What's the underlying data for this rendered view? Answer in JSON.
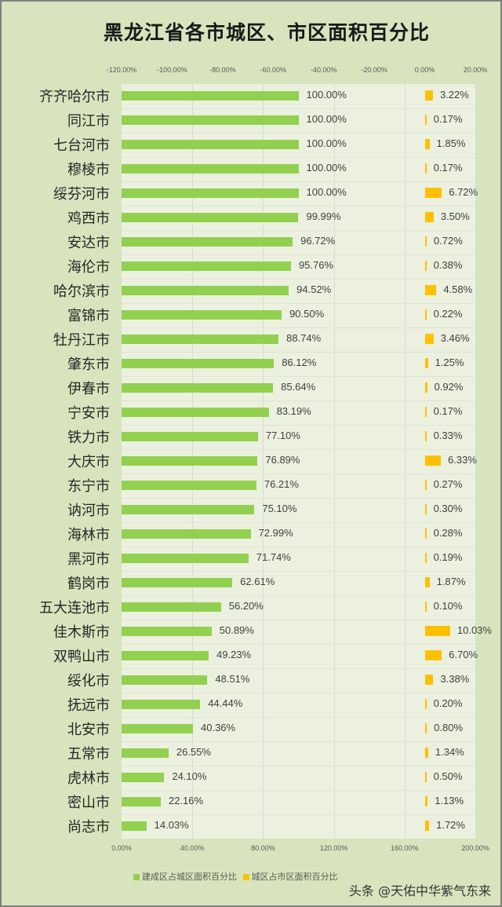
{
  "chart_data": {
    "type": "bar",
    "orientation": "horizontal",
    "title": "黑龙江省各市城区、市区面积百分比",
    "categories": [
      "齐齐哈尔市",
      "同江市",
      "七台河市",
      "穆棱市",
      "绥芬河市",
      "鸡西市",
      "安达市",
      "海伦市",
      "哈尔滨市",
      "富锦市",
      "牡丹江市",
      "肇东市",
      "伊春市",
      "宁安市",
      "铁力市",
      "大庆市",
      "东宁市",
      "讷河市",
      "海林市",
      "黑河市",
      "鹤岗市",
      "五大连池市",
      "佳木斯市",
      "双鸭山市",
      "绥化市",
      "抚远市",
      "北安市",
      "五常市",
      "虎林市",
      "密山市",
      "尚志市"
    ],
    "series": [
      {
        "name": "建成区占城区面积百分比",
        "color": "#92d050",
        "axis": "bottom",
        "values": [
          100.0,
          100.0,
          100.0,
          100.0,
          100.0,
          99.99,
          96.72,
          95.76,
          94.52,
          90.5,
          88.74,
          86.12,
          85.64,
          83.19,
          77.1,
          76.89,
          76.21,
          75.1,
          72.99,
          71.74,
          62.61,
          56.2,
          50.89,
          49.23,
          48.51,
          44.44,
          40.36,
          26.55,
          24.1,
          22.16,
          14.03
        ],
        "labels": [
          "100.00%",
          "100.00%",
          "100.00%",
          "100.00%",
          "100.00%",
          "99.99%",
          "96.72%",
          "95.76%",
          "94.52%",
          "90.50%",
          "88.74%",
          "86.12%",
          "85.64%",
          "83.19%",
          "77.10%",
          "76.89%",
          "76.21%",
          "75.10%",
          "72.99%",
          "71.74%",
          "62.61%",
          "56.20%",
          "50.89%",
          "49.23%",
          "48.51%",
          "44.44%",
          "40.36%",
          "26.55%",
          "24.10%",
          "22.16%",
          "14.03%"
        ]
      },
      {
        "name": "城区占市区面积百分比",
        "color": "#ffc000",
        "axis": "top",
        "values": [
          3.22,
          0.17,
          1.85,
          0.17,
          6.72,
          3.5,
          0.72,
          0.38,
          4.58,
          0.22,
          3.46,
          1.25,
          0.92,
          0.17,
          0.33,
          6.33,
          0.27,
          0.3,
          0.28,
          0.19,
          1.87,
          0.1,
          10.03,
          6.7,
          3.38,
          0.2,
          0.8,
          1.34,
          0.5,
          1.13,
          1.72
        ],
        "labels": [
          "3.22%",
          "0.17%",
          "1.85%",
          "0.17%",
          "6.72%",
          "3.50%",
          "0.72%",
          "0.38%",
          "4.58%",
          "0.22%",
          "3.46%",
          "1.25%",
          "0.92%",
          "0.17%",
          "0.33%",
          "6.33%",
          "0.27%",
          "0.30%",
          "0.28%",
          "0.19%",
          "1.87%",
          "0.10%",
          "10.03%",
          "6.70%",
          "3.38%",
          "0.20%",
          "0.80%",
          "1.34%",
          "0.50%",
          "1.13%",
          "1.72%"
        ]
      }
    ],
    "xlabel": "",
    "ylabel": "",
    "bottom_axis": {
      "range": [
        0,
        200
      ],
      "ticks": [
        "0.00%",
        "40.00%",
        "80.00%",
        "120.00%",
        "160.00%",
        "200.00%"
      ]
    },
    "top_axis": {
      "range": [
        -120,
        20
      ],
      "ticks": [
        "-120.00%",
        "-100.00%",
        "-80.00%",
        "-60.00%",
        "-40.00%",
        "-20.00%",
        "0.00%",
        "20.00%"
      ]
    },
    "grid": true,
    "legend_position": "bottom"
  },
  "watermark": "头条 @天佑中华紫气东来"
}
